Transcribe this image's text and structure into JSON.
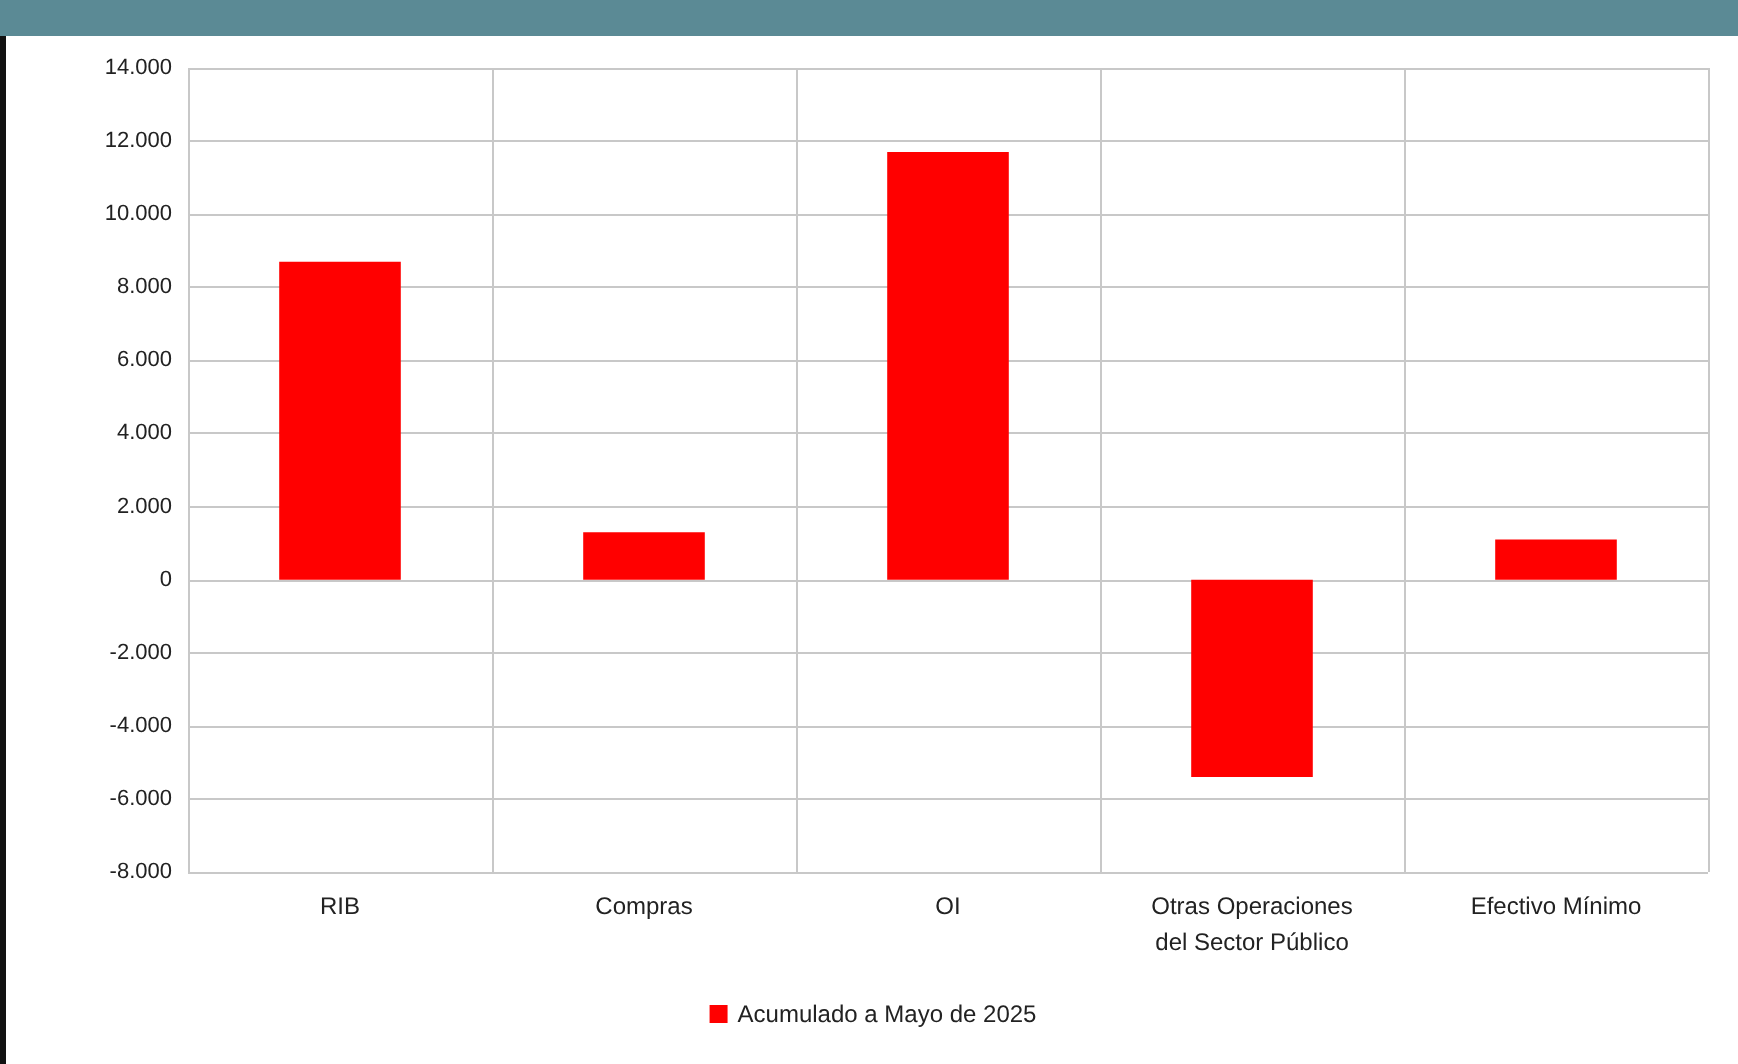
{
  "chart_data": {
    "type": "bar",
    "categories": [
      "RIB",
      "Compras",
      "OI",
      "Otras Operaciones\ndel Sector Público",
      "Efectivo Mínimo"
    ],
    "series": [
      {
        "name": "Acumulado a Mayo de 2025",
        "color": "#ff0000",
        "values": [
          8700,
          1300,
          11700,
          -5400,
          1100
        ]
      }
    ],
    "ylim": [
      -8000,
      14000
    ],
    "yticks": [
      {
        "value": -8000,
        "label": "-8.000"
      },
      {
        "value": -6000,
        "label": "-6.000"
      },
      {
        "value": -4000,
        "label": "-4.000"
      },
      {
        "value": -2000,
        "label": "-2.000"
      },
      0,
      {
        "value": 2000,
        "label": "2.000"
      },
      {
        "value": 4000,
        "label": "4.000"
      },
      {
        "value": 6000,
        "label": "6.000"
      },
      {
        "value": 8000,
        "label": "8.000"
      },
      {
        "value": 10000,
        "label": "10.000"
      },
      {
        "value": 12000,
        "label": "12.000"
      },
      {
        "value": 14000,
        "label": "14.000"
      }
    ],
    "grid": true,
    "legend": "bottom"
  }
}
